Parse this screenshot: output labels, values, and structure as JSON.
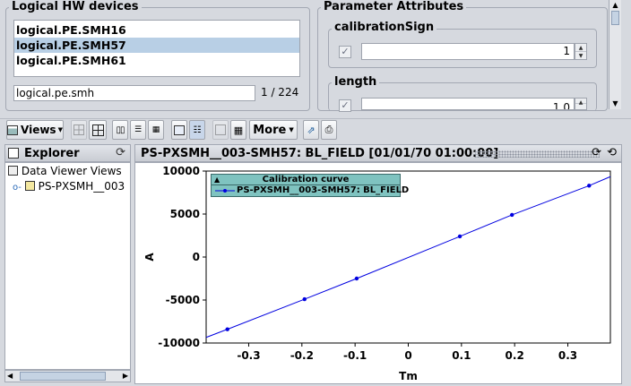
{
  "hw_panel": {
    "title": "Logical HW devices",
    "devices": [
      "logical.PE.SMH16",
      "logical.PE.SMH57",
      "logical.PE.SMH61"
    ],
    "selected_index": 1,
    "filter_value": "logical.pe.smh",
    "count": "1 / 224"
  },
  "param_panel": {
    "title": "Parameter Attributes",
    "params": [
      {
        "name": "calibrationSign",
        "value": "1",
        "checked": true
      },
      {
        "name": "length",
        "value": "1.0",
        "checked": true
      }
    ]
  },
  "toolbar": {
    "views_label": "Views",
    "more_label": "More"
  },
  "explorer": {
    "title": "Explorer",
    "root": "Data Viewer Views",
    "child": "PS-PXSMH__003"
  },
  "viewer": {
    "title": "PS-PXSMH__003-SMH57: BL_FIELD  [01/01/70 01:00:00]"
  },
  "chart_data": {
    "type": "line",
    "legend_title": "Calibration curve",
    "series": [
      {
        "name": "PS-PXSMH__003-SMH57: BL_FIELD",
        "color": "#0000e0",
        "x": [
          -0.34,
          -0.195,
          -0.097,
          0.097,
          0.195,
          0.34
        ],
        "y": [
          -8400,
          -4900,
          -2500,
          2400,
          4900,
          8300
        ]
      }
    ],
    "line_extent": {
      "x": [
        -0.38,
        0.38
      ],
      "y": [
        -9350,
        9350
      ]
    },
    "xlabel": "Tm",
    "ylabel": "A",
    "xlim": [
      -0.38,
      0.38
    ],
    "ylim": [
      -10000,
      10000
    ],
    "xticks": [
      -0.3,
      -0.2,
      -0.1,
      0,
      0.1,
      0.2,
      0.3
    ],
    "xtick_labels": [
      "-0.3",
      "-0.2",
      "-0.1",
      "0",
      "0.1",
      "0.2",
      "0.3"
    ],
    "yticks": [
      -10000,
      -5000,
      0,
      5000,
      10000
    ],
    "ytick_labels": [
      "-10000",
      "-5000",
      "0",
      "5000",
      "10000"
    ],
    "grid": false,
    "legend_position": "top-left"
  }
}
